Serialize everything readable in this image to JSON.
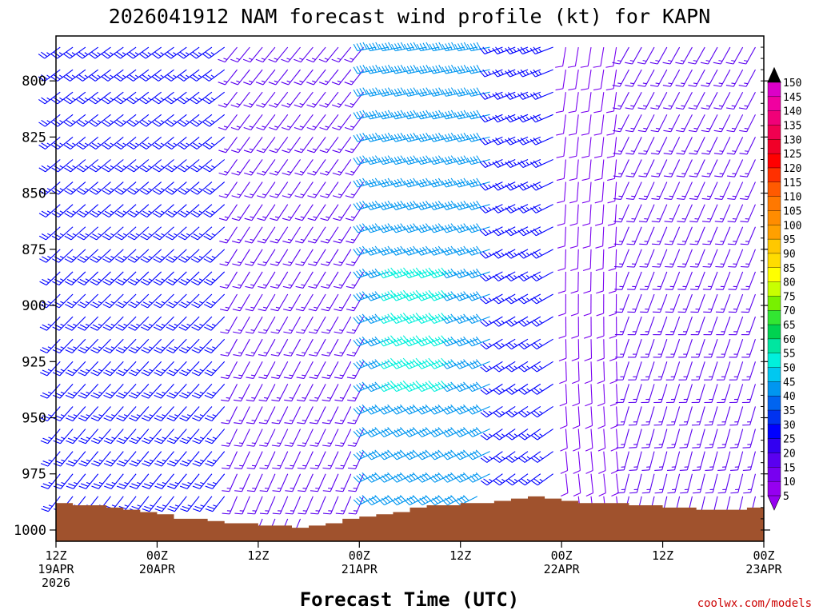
{
  "chart_data": {
    "type": "wind-barb-profile",
    "title": "2026041912 NAM forecast wind profile (kt) for KAPN",
    "xlabel": "Forecast Time (UTC)",
    "ylabel": "",
    "credit": "coolwx.com/models",
    "y_axis": {
      "unit": "hPa",
      "range": [
        780,
        1005
      ],
      "ticks": [
        "800",
        "825",
        "850",
        "875",
        "900",
        "925",
        "950",
        "975",
        "1000"
      ],
      "tick_values": [
        800,
        825,
        850,
        875,
        900,
        925,
        950,
        975,
        1000
      ]
    },
    "x_axis": {
      "unit": "hours since 12Z 19APR2026",
      "range": [
        0,
        84
      ],
      "ticks": [
        {
          "hour": 0,
          "lines": [
            "12Z",
            "19APR",
            "2026"
          ]
        },
        {
          "hour": 12,
          "lines": [
            "00Z",
            "20APR"
          ]
        },
        {
          "hour": 24,
          "lines": [
            "12Z"
          ]
        },
        {
          "hour": 36,
          "lines": [
            "00Z",
            "21APR"
          ]
        },
        {
          "hour": 48,
          "lines": [
            "12Z"
          ]
        },
        {
          "hour": 60,
          "lines": [
            "00Z",
            "22APR"
          ]
        },
        {
          "hour": 72,
          "lines": [
            "12Z"
          ]
        },
        {
          "hour": 84,
          "lines": [
            "00Z",
            "23APR"
          ]
        }
      ]
    },
    "colorbar": {
      "unit": "kt",
      "labels": [
        "150",
        "145",
        "140",
        "135",
        "130",
        "125",
        "120",
        "115",
        "110",
        "105",
        "100",
        "95",
        "90",
        "85",
        "80",
        "75",
        "70",
        "65",
        "60",
        "55",
        "50",
        "45",
        "40",
        "35",
        "30",
        "25",
        "20",
        "15",
        "10",
        "5"
      ],
      "colors": [
        "#c800dc",
        "#dc00c8",
        "#f000a0",
        "#f00078",
        "#f00050",
        "#f00028",
        "#ff0000",
        "#ff3000",
        "#ff5a00",
        "#ff7800",
        "#ff8c00",
        "#ffa000",
        "#ffc800",
        "#ffdc00",
        "#ffff00",
        "#c8ff00",
        "#78f000",
        "#32e632",
        "#00d250",
        "#00e6a0",
        "#00f0dc",
        "#00c8f0",
        "#0096f0",
        "#0064f0",
        "#0032f0",
        "#0000ff",
        "#3200f0",
        "#5a00f0",
        "#7800f0",
        "#9600f0"
      ]
    },
    "terrain": {
      "unit": "hPa surface pressure",
      "points": [
        [
          0,
          988
        ],
        [
          2,
          989
        ],
        [
          4,
          989
        ],
        [
          6,
          990
        ],
        [
          8,
          991
        ],
        [
          10,
          992
        ],
        [
          12,
          993
        ],
        [
          14,
          995
        ],
        [
          16,
          995
        ],
        [
          18,
          996
        ],
        [
          20,
          997
        ],
        [
          22,
          997
        ],
        [
          24,
          998
        ],
        [
          26,
          998
        ],
        [
          28,
          999
        ],
        [
          30,
          998
        ],
        [
          32,
          997
        ],
        [
          34,
          995
        ],
        [
          36,
          994
        ],
        [
          38,
          993
        ],
        [
          40,
          992
        ],
        [
          42,
          990
        ],
        [
          44,
          989
        ],
        [
          46,
          989
        ],
        [
          48,
          988
        ],
        [
          50,
          988
        ],
        [
          52,
          987
        ],
        [
          54,
          986
        ],
        [
          56,
          985
        ],
        [
          58,
          986
        ],
        [
          60,
          987
        ],
        [
          62,
          988
        ],
        [
          64,
          988
        ],
        [
          66,
          988
        ],
        [
          68,
          989
        ],
        [
          70,
          989
        ],
        [
          72,
          990
        ],
        [
          74,
          990
        ],
        [
          76,
          991
        ],
        [
          78,
          991
        ],
        [
          80,
          991
        ],
        [
          82,
          990
        ],
        [
          84,
          990
        ]
      ]
    },
    "wind_barbs": {
      "unit": "kt, direction in degrees from",
      "time_step_hours": 1.5,
      "pressure_levels": [
        785,
        795,
        805,
        815,
        825,
        835,
        845,
        855,
        865,
        875,
        885,
        895,
        905,
        915,
        925,
        935,
        945,
        955,
        965,
        975,
        985,
        995
      ],
      "regimes": [
        {
          "hours": [
            0,
            21
          ],
          "direction": 225,
          "speed": 25
        },
        {
          "hours": [
            21,
            37
          ],
          "direction": 210,
          "speed": 15
        },
        {
          "hours": [
            37,
            52
          ],
          "direction": 250,
          "speed": 40
        },
        {
          "hours": [
            52,
            60
          ],
          "direction": 240,
          "speed": 25
        },
        {
          "hours": [
            60,
            68
          ],
          "direction": 180,
          "speed": 12
        },
        {
          "hours": [
            68,
            84
          ],
          "direction": 200,
          "speed": 15
        }
      ],
      "peak": {
        "hours": [
          41,
          48
        ],
        "levels": [
          880,
          935
        ],
        "speed": 48
      }
    }
  }
}
